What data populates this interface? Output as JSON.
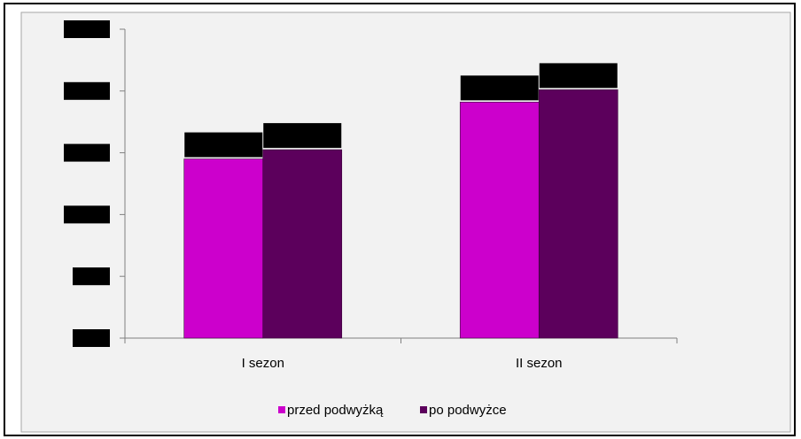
{
  "chart_data": {
    "type": "bar",
    "title": "",
    "xlabel": "",
    "ylabel": "",
    "categories": [
      "I sezon",
      "II sezon"
    ],
    "series": [
      {
        "name": "przed podwyżką",
        "values": [
          2.9,
          3.82
        ]
      },
      {
        "name": "po podwyżce",
        "values": [
          3.05,
          4.02
        ]
      }
    ],
    "ylim": [
      0,
      5
    ],
    "y_tick_count": 6,
    "y_tick_labels_visible": false,
    "data_labels_visible": false,
    "grid": false,
    "legend_position": "bottom",
    "colors": {
      "series": [
        "#cc00cc",
        "#5c005c"
      ],
      "redaction": "#000000",
      "axis": "#808080",
      "plot_background": "#f2f2f2"
    }
  }
}
